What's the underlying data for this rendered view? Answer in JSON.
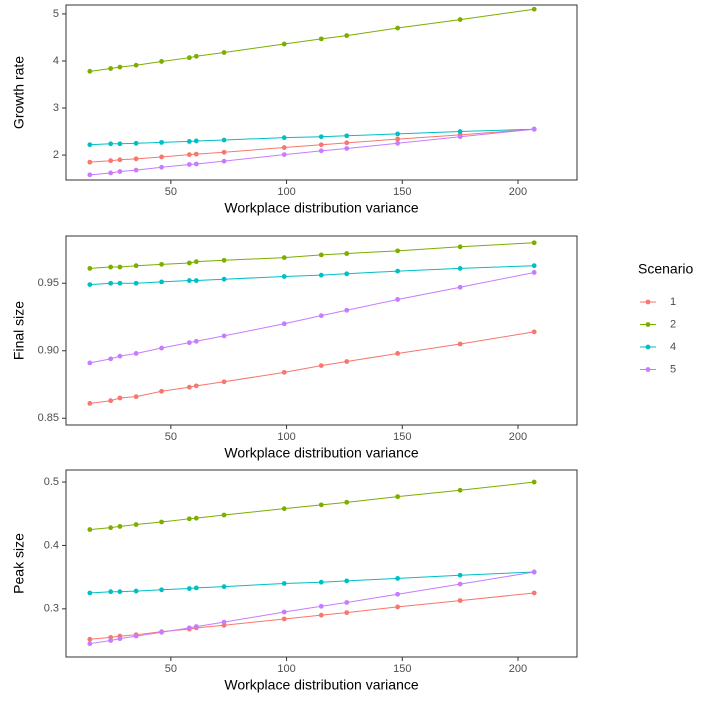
{
  "chart_data": [
    {
      "type": "line",
      "x_label": "Workplace distribution variance",
      "y_label": "Growth rate",
      "legend_title": "Scenario",
      "x": [
        15,
        24,
        28,
        35,
        46,
        58,
        61,
        73,
        99,
        115,
        126,
        148,
        175,
        207
      ],
      "xlim": [
        4.7,
        225.5
      ],
      "xticks": [
        50,
        100,
        150,
        200
      ],
      "ylim": [
        1.47,
        5.19
      ],
      "yticks": [
        2,
        3,
        4,
        5
      ],
      "series": [
        {
          "name": "1",
          "color": "#F8766D",
          "values": [
            1.85,
            1.88,
            1.9,
            1.92,
            1.96,
            2.01,
            2.02,
            2.06,
            2.16,
            2.22,
            2.26,
            2.34,
            2.43,
            2.55
          ]
        },
        {
          "name": "2",
          "color": "#7CAE00",
          "values": [
            3.78,
            3.84,
            3.87,
            3.91,
            3.99,
            4.07,
            4.1,
            4.18,
            4.36,
            4.47,
            4.54,
            4.7,
            4.88,
            5.1
          ]
        },
        {
          "name": "4",
          "color": "#00BFC4",
          "values": [
            2.22,
            2.24,
            2.24,
            2.25,
            2.27,
            2.29,
            2.3,
            2.32,
            2.37,
            2.39,
            2.41,
            2.45,
            2.5,
            2.55
          ]
        },
        {
          "name": "5",
          "color": "#C77CFF",
          "values": [
            1.58,
            1.62,
            1.65,
            1.68,
            1.74,
            1.8,
            1.81,
            1.87,
            2.01,
            2.09,
            2.14,
            2.25,
            2.39,
            2.55
          ]
        }
      ]
    },
    {
      "type": "line",
      "x_label": "Workplace distribution variance",
      "y_label": "Final size",
      "x": [
        15,
        24,
        28,
        35,
        46,
        58,
        61,
        73,
        99,
        115,
        126,
        148,
        175,
        207
      ],
      "xlim": [
        4.7,
        225.5
      ],
      "xticks": [
        50,
        100,
        150,
        200
      ],
      "ylim": [
        0.845,
        0.985
      ],
      "yticks": [
        0.85,
        {
          "value": 0.9,
          "label": "0.90"
        },
        0.95
      ],
      "series": [
        {
          "color": "#F8766D",
          "values": [
            0.861,
            0.863,
            0.865,
            0.866,
            0.87,
            0.873,
            0.874,
            0.877,
            0.884,
            0.889,
            0.892,
            0.898,
            0.905,
            0.914
          ]
        },
        {
          "color": "#7CAE00",
          "values": [
            0.961,
            0.962,
            0.962,
            0.963,
            0.964,
            0.965,
            0.966,
            0.967,
            0.969,
            0.971,
            0.972,
            0.974,
            0.977,
            0.98
          ]
        },
        {
          "color": "#00BFC4",
          "values": [
            0.949,
            0.95,
            0.95,
            0.95,
            0.951,
            0.952,
            0.952,
            0.953,
            0.955,
            0.956,
            0.957,
            0.959,
            0.961,
            0.963
          ]
        },
        {
          "color": "#C77CFF",
          "values": [
            0.891,
            0.894,
            0.896,
            0.898,
            0.902,
            0.906,
            0.907,
            0.911,
            0.92,
            0.926,
            0.93,
            0.938,
            0.947,
            0.958
          ]
        }
      ]
    },
    {
      "type": "line",
      "x_label": "Workplace distribution variance",
      "y_label": "Peak size",
      "x": [
        15,
        24,
        28,
        35,
        46,
        58,
        61,
        73,
        99,
        115,
        126,
        148,
        175,
        207
      ],
      "xlim": [
        4.7,
        225.5
      ],
      "xticks": [
        50,
        100,
        150,
        200
      ],
      "ylim": [
        0.224,
        0.519
      ],
      "yticks": [
        0.3,
        0.4,
        0.5
      ],
      "series": [
        {
          "color": "#F8766D",
          "values": [
            0.252,
            0.255,
            0.257,
            0.259,
            0.264,
            0.268,
            0.27,
            0.274,
            0.284,
            0.29,
            0.294,
            0.303,
            0.313,
            0.325
          ]
        },
        {
          "color": "#7CAE00",
          "values": [
            0.425,
            0.428,
            0.43,
            0.433,
            0.437,
            0.442,
            0.443,
            0.448,
            0.458,
            0.464,
            0.468,
            0.477,
            0.487,
            0.5
          ]
        },
        {
          "color": "#00BFC4",
          "values": [
            0.325,
            0.327,
            0.327,
            0.328,
            0.33,
            0.332,
            0.333,
            0.335,
            0.34,
            0.342,
            0.344,
            0.348,
            0.353,
            0.358
          ]
        },
        {
          "color": "#C77CFF",
          "values": [
            0.245,
            0.25,
            0.253,
            0.257,
            0.263,
            0.27,
            0.272,
            0.279,
            0.295,
            0.304,
            0.31,
            0.323,
            0.339,
            0.358
          ]
        }
      ]
    }
  ]
}
